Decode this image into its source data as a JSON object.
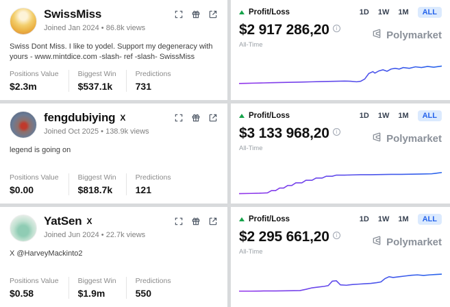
{
  "colors": {
    "accent_blue": "#2563eb",
    "accent_blue_bg": "#dbeafe",
    "green": "#16a34a",
    "line_purple": "#9333ea",
    "line_blue": "#2563eb"
  },
  "profiles": [
    {
      "name": "SwissMiss",
      "x_badge": "",
      "joined_line": "Joined Jan 2024 • 86.8k views",
      "bio": "Swiss Dont Miss. I like to yodel. Support my degeneracy with yours - www.mintdice.com -slash- ref -slash- SwissMiss",
      "stats": [
        {
          "label": "Positions Value",
          "value": "$2.3m"
        },
        {
          "label": "Biggest Win",
          "value": "$537.1k"
        },
        {
          "label": "Predictions",
          "value": "731"
        }
      ],
      "chart": {
        "pl_label": "Profit/Loss",
        "amount": "$2 917 286,20",
        "period": "All-Time",
        "brand": "Polymarket",
        "ranges": [
          "1D",
          "1W",
          "1M",
          "ALL"
        ],
        "active_range": "ALL",
        "points": [
          [
            0,
            30
          ],
          [
            4,
            30.5
          ],
          [
            8,
            31
          ],
          [
            12,
            31.5
          ],
          [
            16,
            32
          ],
          [
            20,
            32.5
          ],
          [
            24,
            33
          ],
          [
            28,
            33.5
          ],
          [
            32,
            34
          ],
          [
            36,
            34.5
          ],
          [
            40,
            35
          ],
          [
            44,
            35.5
          ],
          [
            48,
            36
          ],
          [
            52,
            36.5
          ],
          [
            55,
            36
          ],
          [
            58,
            34.5
          ],
          [
            60,
            36
          ],
          [
            62,
            42
          ],
          [
            64,
            57
          ],
          [
            66,
            62
          ],
          [
            67,
            58
          ],
          [
            69,
            64
          ],
          [
            71,
            67
          ],
          [
            73,
            63
          ],
          [
            75,
            69
          ],
          [
            77,
            71
          ],
          [
            79,
            69
          ],
          [
            81,
            73
          ],
          [
            84,
            71
          ],
          [
            87,
            75
          ],
          [
            90,
            73
          ],
          [
            93,
            76
          ],
          [
            96,
            74
          ],
          [
            100,
            77
          ]
        ]
      }
    },
    {
      "name": "fengdubiying",
      "x_badge": "X",
      "joined_line": "Joined Oct 2025 • 138.9k views",
      "bio": "legend is going on",
      "stats": [
        {
          "label": "Positions Value",
          "value": "$0.00"
        },
        {
          "label": "Biggest Win",
          "value": "$818.7k"
        },
        {
          "label": "Predictions",
          "value": "121"
        }
      ],
      "chart": {
        "pl_label": "Profit/Loss",
        "amount": "$3 133 968,20",
        "period": "All-Time",
        "brand": "Polymarket",
        "ranges": [
          "1D",
          "1W",
          "1M",
          "ALL"
        ],
        "active_range": "ALL",
        "points": [
          [
            0,
            12
          ],
          [
            6,
            12.5
          ],
          [
            10,
            13
          ],
          [
            14,
            14
          ],
          [
            16,
            20
          ],
          [
            18,
            20
          ],
          [
            20,
            27
          ],
          [
            22,
            27
          ],
          [
            24,
            34
          ],
          [
            26,
            34
          ],
          [
            28,
            41
          ],
          [
            31,
            41
          ],
          [
            33,
            48
          ],
          [
            36,
            48
          ],
          [
            38,
            54
          ],
          [
            41,
            54
          ],
          [
            43,
            59
          ],
          [
            46,
            59
          ],
          [
            48,
            62
          ],
          [
            52,
            62
          ],
          [
            56,
            62.5
          ],
          [
            60,
            63
          ],
          [
            65,
            63
          ],
          [
            70,
            63.5
          ],
          [
            75,
            64
          ],
          [
            80,
            64
          ],
          [
            85,
            64.5
          ],
          [
            90,
            65
          ],
          [
            95,
            65.5
          ],
          [
            100,
            69
          ]
        ]
      }
    },
    {
      "name": "YatSen",
      "x_badge": "X",
      "joined_line": "Joined Jun 2024 • 22.7k views",
      "bio": "X @HarveyMackinto2",
      "stats": [
        {
          "label": "Positions Value",
          "value": "$0.58"
        },
        {
          "label": "Biggest Win",
          "value": "$1.9m"
        },
        {
          "label": "Predictions",
          "value": "550"
        }
      ],
      "chart": {
        "pl_label": "Profit/Loss",
        "amount": "$2 295 661,20",
        "period": "All-Time",
        "brand": "Polymarket",
        "ranges": [
          "1D",
          "1W",
          "1M",
          "ALL"
        ],
        "active_range": "ALL",
        "points": [
          [
            0,
            28
          ],
          [
            6,
            28
          ],
          [
            12,
            28.5
          ],
          [
            18,
            28.5
          ],
          [
            24,
            29
          ],
          [
            30,
            29.5
          ],
          [
            33,
            33
          ],
          [
            36,
            37
          ],
          [
            39,
            39
          ],
          [
            42,
            41
          ],
          [
            44,
            43
          ],
          [
            46,
            55
          ],
          [
            48,
            56
          ],
          [
            50,
            45
          ],
          [
            53,
            44
          ],
          [
            56,
            46
          ],
          [
            59,
            47
          ],
          [
            62,
            48
          ],
          [
            65,
            49
          ],
          [
            68,
            51
          ],
          [
            70,
            53
          ],
          [
            72,
            62
          ],
          [
            74,
            67
          ],
          [
            76,
            65
          ],
          [
            79,
            67
          ],
          [
            82,
            69
          ],
          [
            85,
            71
          ],
          [
            88,
            72
          ],
          [
            91,
            70.5
          ],
          [
            94,
            72
          ],
          [
            97,
            73
          ],
          [
            100,
            74
          ]
        ]
      }
    }
  ]
}
